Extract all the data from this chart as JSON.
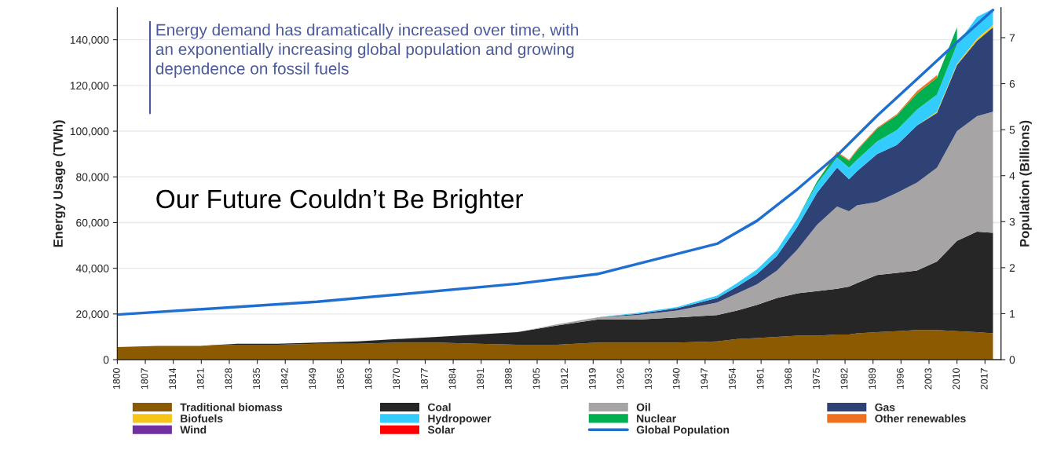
{
  "chart_data": {
    "type": "area",
    "stacked": true,
    "x": [
      1800,
      1810,
      1820,
      1830,
      1840,
      1850,
      1860,
      1870,
      1880,
      1890,
      1900,
      1910,
      1920,
      1930,
      1940,
      1950,
      1955,
      1960,
      1965,
      1970,
      1975,
      1980,
      1983,
      1985,
      1990,
      1995,
      2000,
      2005,
      2010,
      2015,
      2019
    ],
    "series": [
      {
        "name": "Traditional biomass",
        "color": "#8c5a00",
        "values": [
          5500,
          6000,
          6000,
          6500,
          6500,
          7000,
          7000,
          7500,
          7500,
          7000,
          6500,
          6500,
          7500,
          7500,
          7500,
          8000,
          9000,
          9500,
          10000,
          10500,
          10500,
          11000,
          11000,
          11500,
          12000,
          12500,
          13000,
          13000,
          12500,
          12000,
          11500
        ]
      },
      {
        "name": "Coal",
        "color": "#262626",
        "values": [
          0,
          0,
          0,
          500,
          500,
          500,
          1000,
          1500,
          2500,
          4000,
          5500,
          8500,
          10000,
          10000,
          11000,
          11500,
          12500,
          14500,
          17000,
          18500,
          19500,
          20000,
          21000,
          22000,
          25000,
          25500,
          26000,
          30000,
          39500,
          44000,
          44000
        ]
      },
      {
        "name": "Oil",
        "color": "#a6a4a4",
        "values": [
          0,
          0,
          0,
          0,
          0,
          0,
          0,
          0,
          0,
          0,
          0,
          500,
          1000,
          2000,
          3000,
          5500,
          7500,
          9000,
          12000,
          19000,
          29000,
          36000,
          33000,
          34000,
          32000,
          35000,
          38500,
          41000,
          48000,
          50500,
          53000
        ]
      },
      {
        "name": "Gas",
        "color": "#2f4275",
        "values": [
          0,
          0,
          0,
          0,
          0,
          0,
          0,
          0,
          0,
          0,
          0,
          0,
          0,
          500,
          1000,
          2000,
          3000,
          4500,
          6500,
          10000,
          14000,
          17000,
          14000,
          15000,
          21000,
          21000,
          25000,
          24000,
          29000,
          33000,
          37000
        ]
      },
      {
        "name": "Biofuels",
        "color": "#f5c518",
        "values": [
          0,
          0,
          0,
          0,
          0,
          0,
          0,
          0,
          0,
          0,
          0,
          0,
          0,
          0,
          0,
          0,
          0,
          0,
          0,
          0,
          0,
          0,
          0,
          0,
          0,
          0,
          0,
          500,
          500,
          1000,
          1000
        ]
      },
      {
        "name": "Hydropower",
        "color": "#33ccff",
        "values": [
          0,
          0,
          0,
          0,
          0,
          0,
          0,
          0,
          0,
          0,
          0,
          0,
          0,
          500,
          500,
          1000,
          1500,
          2000,
          2500,
          3500,
          4000,
          4500,
          5000,
          5000,
          5500,
          6500,
          7000,
          7500,
          8500,
          9500,
          7000
        ]
      },
      {
        "name": "Nuclear",
        "color": "#00b050",
        "values": [
          0,
          0,
          0,
          0,
          0,
          0,
          0,
          0,
          0,
          0,
          0,
          0,
          0,
          0,
          0,
          0,
          0,
          0,
          0,
          0,
          1000,
          2000,
          3000,
          4000,
          5500,
          6500,
          7000,
          7500,
          7500,
          null,
          null
        ]
      },
      {
        "name": "Other renewables",
        "color": "#f07020",
        "values": [
          0,
          0,
          0,
          0,
          0,
          0,
          0,
          0,
          0,
          0,
          0,
          0,
          0,
          0,
          0,
          0,
          0,
          0,
          0,
          0,
          0,
          500,
          500,
          500,
          500,
          500,
          1000,
          1000,
          null,
          null,
          null
        ]
      },
      {
        "name": "Wind",
        "color": "#7030a0",
        "values": [
          null,
          null,
          null,
          null,
          null,
          null,
          null,
          null,
          null,
          null,
          null,
          null,
          null,
          null,
          null,
          null,
          null,
          null,
          null,
          null,
          null,
          null,
          null,
          null,
          null,
          null,
          null,
          null,
          null,
          null,
          null
        ]
      },
      {
        "name": "Solar",
        "color": "#ff0000",
        "values": [
          null,
          null,
          null,
          null,
          null,
          null,
          null,
          null,
          null,
          null,
          null,
          null,
          null,
          null,
          null,
          null,
          null,
          null,
          null,
          null,
          null,
          null,
          null,
          null,
          null,
          null,
          null,
          null,
          null,
          null,
          null
        ]
      },
      {
        "name": "Global Population",
        "type": "line",
        "axis": "y2",
        "color": "#1f6fd1",
        "x": [
          1800,
          1850,
          1900,
          1920,
          1950,
          1960,
          1970,
          1980,
          1990,
          2000,
          2010,
          2019
        ],
        "values": [
          0.98,
          1.26,
          1.65,
          1.86,
          2.52,
          3.02,
          3.7,
          4.44,
          5.3,
          6.1,
          6.9,
          7.6
        ]
      }
    ],
    "ylabel": "Energy Usage (TWh)",
    "y2label": "Population (Billions)",
    "xlim": [
      1800,
      2021
    ],
    "xticks": [
      1800,
      1807,
      1814,
      1821,
      1828,
      1835,
      1842,
      1849,
      1856,
      1863,
      1870,
      1877,
      1884,
      1891,
      1898,
      1905,
      1912,
      1919,
      1926,
      1933,
      1940,
      1947,
      1954,
      1961,
      1968,
      1975,
      1982,
      1989,
      1996,
      2003,
      2010,
      2017
    ],
    "ylim": [
      0,
      154000
    ],
    "yticks": [
      {
        "value": 0,
        "label": "0"
      },
      {
        "value": 20000,
        "label": "20,000"
      },
      {
        "value": 40000,
        "label": "40,000"
      },
      {
        "value": 60000,
        "label": "60,000"
      },
      {
        "value": 80000,
        "label": "80,000"
      },
      {
        "value": 100000,
        "label": "100,000"
      },
      {
        "value": 120000,
        "label": "120,000"
      },
      {
        "value": 140000,
        "label": "140,000"
      }
    ],
    "y2lim": [
      0,
      7.65
    ],
    "y2ticks": [
      0,
      1,
      2,
      3,
      4,
      5,
      6,
      7
    ],
    "grid": "y",
    "legend": "bottom",
    "annotations": [
      "Energy demand has dramatically increased over time, with\nan exponentially increasing global population and growing\ndependence on fossil fuels",
      "Our Future Couldn’t Be Brighter"
    ]
  }
}
